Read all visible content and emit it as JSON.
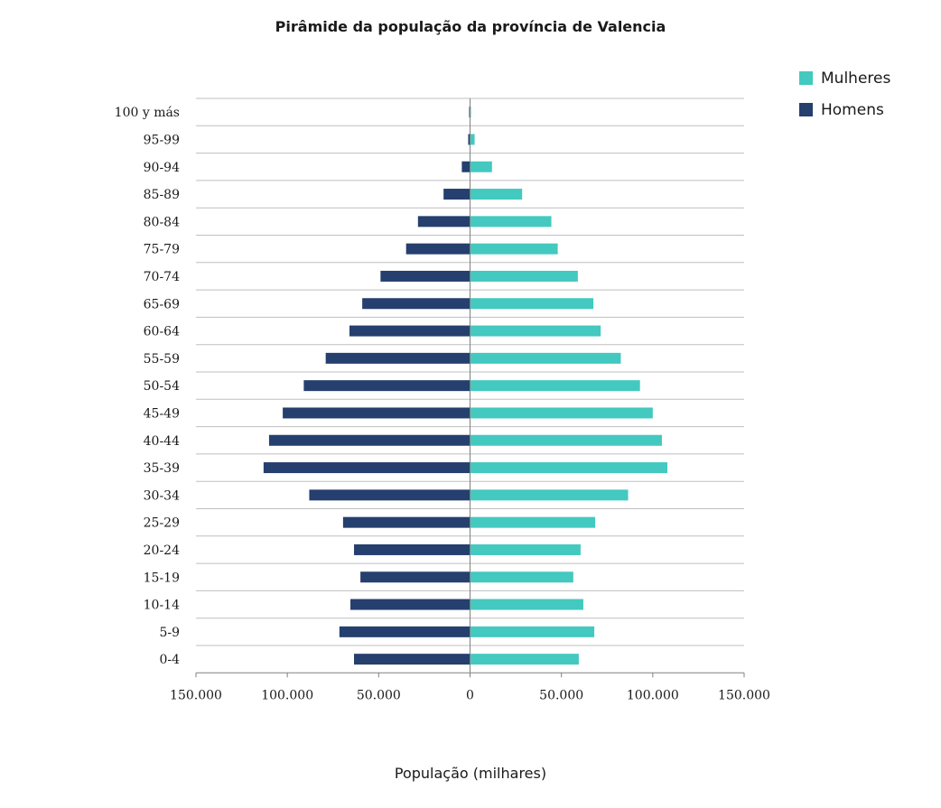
{
  "chart_data": {
    "type": "bar",
    "orientation": "horizontal",
    "layout": "population-pyramid",
    "title": "Pirâmide da população da província de Valencia",
    "xlabel": "População (milhares)",
    "ylabel": "",
    "xlim": [
      -150000,
      150000
    ],
    "x_ticks": [
      -150000,
      -100000,
      -50000,
      0,
      50000,
      100000,
      150000
    ],
    "x_tick_labels": [
      "150.000",
      "100.000",
      "50.000",
      "0",
      "50.000",
      "100.000",
      "150.000"
    ],
    "categories": [
      "100 y más",
      "95-99",
      "90-94",
      "85-89",
      "80-84",
      "75-79",
      "70-74",
      "65-69",
      "60-64",
      "55-59",
      "50-54",
      "45-49",
      "40-44",
      "35-39",
      "30-34",
      "25-29",
      "20-24",
      "15-19",
      "10-14",
      "5-9",
      "0-4"
    ],
    "series": [
      {
        "name": "Mulheres",
        "side": "right",
        "color": "#43c9bf",
        "values": [
          500,
          2500,
          12000,
          28500,
          44500,
          48000,
          59000,
          67500,
          71500,
          82500,
          93000,
          100000,
          105000,
          108000,
          86500,
          68500,
          60500,
          56500,
          62000,
          68000,
          59500
        ]
      },
      {
        "name": "Homens",
        "side": "left",
        "color": "#253f6e",
        "values": [
          500,
          1000,
          4500,
          14500,
          28500,
          35000,
          49000,
          59000,
          66000,
          79000,
          91000,
          102500,
          110000,
          113000,
          88000,
          69500,
          63500,
          60000,
          65500,
          71500,
          63500
        ]
      }
    ],
    "legend": {
      "position": "top-right",
      "entries": [
        "Mulheres",
        "Homens"
      ]
    },
    "grid": {
      "horizontal": true,
      "vertical": false,
      "color": "#bfbfbf"
    },
    "axis_color": "#808080"
  }
}
